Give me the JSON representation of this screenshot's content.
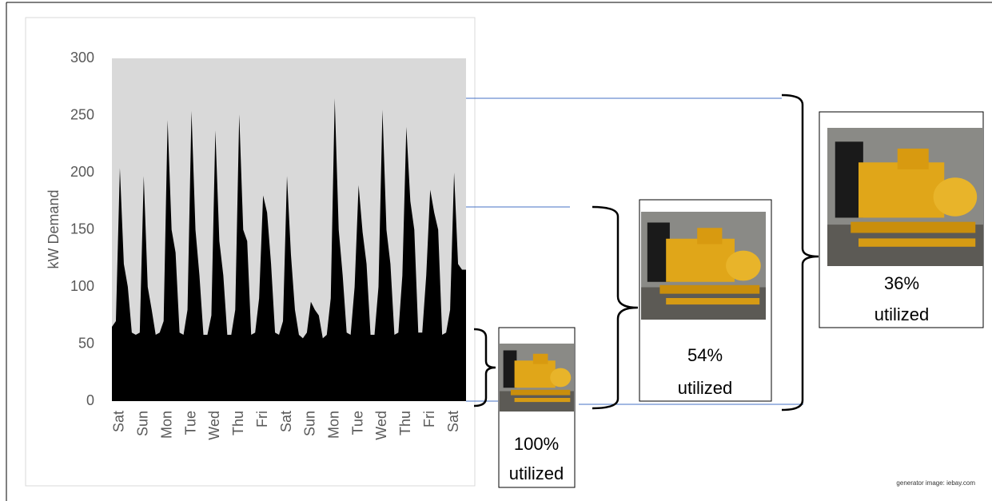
{
  "chart_data": {
    "type": "area",
    "y_label": "kW Demand",
    "color": "#000000",
    "background": "#d9d9d9",
    "ylim": [
      0,
      300
    ],
    "yticks": [
      0,
      50,
      100,
      150,
      200,
      250,
      300
    ],
    "categories": [
      null,
      null,
      "Sat",
      null,
      null,
      null,
      null,
      null,
      "Sun",
      null,
      null,
      null,
      null,
      null,
      "Mon",
      null,
      null,
      null,
      null,
      null,
      "Tue",
      null,
      null,
      null,
      null,
      null,
      "Wed",
      null,
      null,
      null,
      null,
      null,
      "Thu",
      null,
      null,
      null,
      null,
      null,
      "Fri",
      null,
      null,
      null,
      null,
      null,
      "Sat",
      null,
      null,
      null,
      null,
      null,
      "Sun",
      null,
      null,
      null,
      null,
      null,
      "Mon",
      null,
      null,
      null,
      null,
      null,
      "Tue",
      null,
      null,
      null,
      null,
      null,
      "Wed",
      null,
      null,
      null,
      null,
      null,
      "Thu",
      null,
      null,
      null,
      null,
      null,
      "Fri",
      null,
      null,
      null,
      null,
      null,
      "Sat",
      null,
      null,
      null
    ],
    "values": [
      65,
      70,
      204,
      120,
      100,
      60,
      58,
      60,
      197,
      100,
      80,
      58,
      60,
      70,
      246,
      150,
      130,
      60,
      58,
      80,
      254,
      150,
      110,
      58,
      58,
      75,
      237,
      140,
      110,
      58,
      58,
      80,
      251,
      150,
      140,
      58,
      60,
      90,
      180,
      165,
      120,
      60,
      58,
      70,
      197,
      128,
      80,
      58,
      55,
      60,
      87,
      80,
      75,
      55,
      58,
      90,
      265,
      150,
      110,
      60,
      58,
      100,
      189,
      148,
      120,
      58,
      58,
      100,
      255,
      150,
      120,
      58,
      60,
      110,
      240,
      175,
      150,
      60,
      60,
      110,
      185,
      165,
      150,
      58,
      60,
      80,
      200,
      120,
      115,
      115
    ],
    "annotations": [
      {
        "percent": "100%",
        "label": "utilized"
      },
      {
        "percent": "54%",
        "label": "utilized"
      },
      {
        "percent": "36%",
        "label": "utilized"
      }
    ],
    "credit": "generator image: iebay.com"
  }
}
